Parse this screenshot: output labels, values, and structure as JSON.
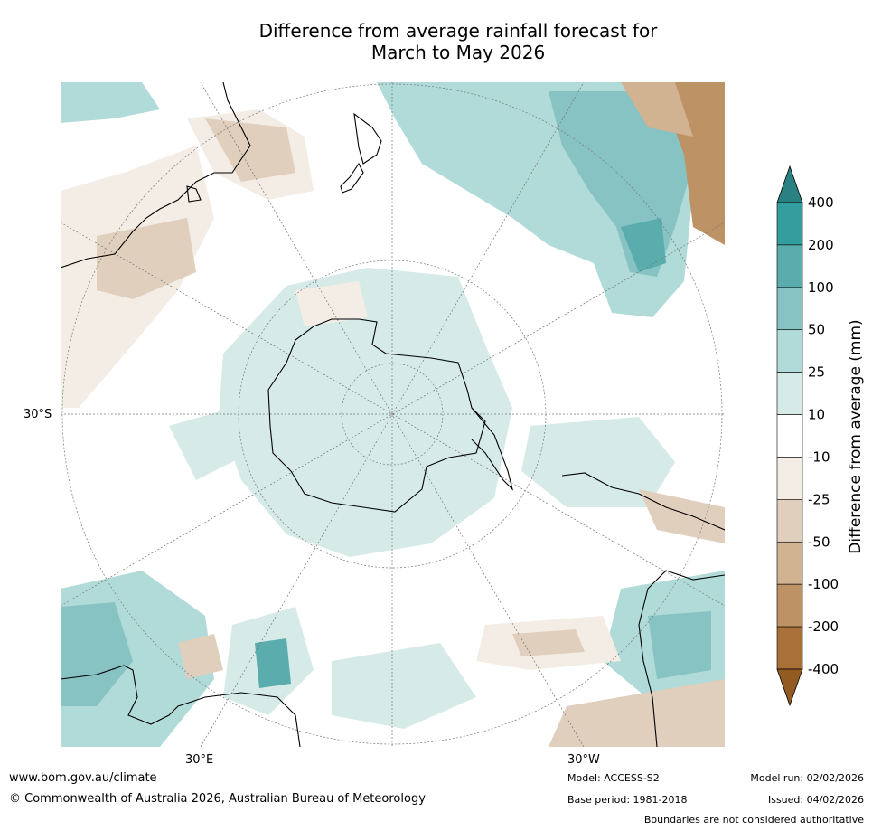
{
  "title_line1": "Difference from average rainfall forecast for",
  "title_line2": "March to May 2026",
  "map": {
    "lat_label": "30°S",
    "lon_label_east": "30°E",
    "lon_label_west": "30°W"
  },
  "legend": {
    "title": "Difference from average (mm)",
    "ticks": [
      "400",
      "200",
      "100",
      "50",
      "25",
      "10",
      "-10",
      "-25",
      "-50",
      "-100",
      "-200",
      "-400"
    ],
    "colors": [
      "#2a8184",
      "#349d9d",
      "#5aacad",
      "#86c3c2",
      "#b0dbd8",
      "#d6ebe8",
      "#ffffff",
      "#f3ede6",
      "#e1cfbd",
      "#d1b291",
      "#bd9265",
      "#a97139",
      "#935b22"
    ]
  },
  "footer": {
    "website": "www.bom.gov.au/climate",
    "copyright": "© Commonwealth of Australia 2026, Australian Bureau of Meteorology",
    "model": "Model: ACCESS-S2",
    "base_period": "Base period: 1981-2018",
    "model_run": "Model run: 02/02/2026",
    "issued": "Issued: 04/02/2026",
    "disclaimer": "Boundaries are not considered authoritative"
  }
}
